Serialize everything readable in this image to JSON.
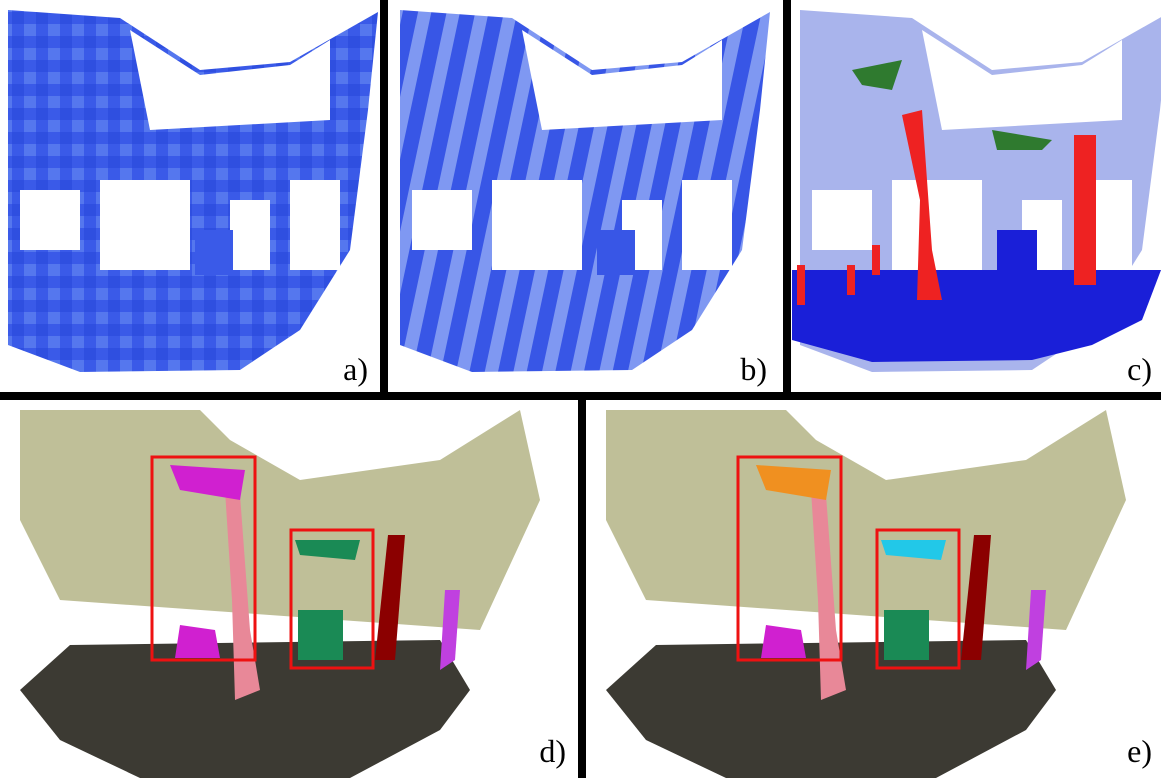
{
  "panels": [
    {
      "label": "a)"
    },
    {
      "label": "b)"
    },
    {
      "label": "c)"
    },
    {
      "label": "d)"
    },
    {
      "label": "e)"
    }
  ]
}
